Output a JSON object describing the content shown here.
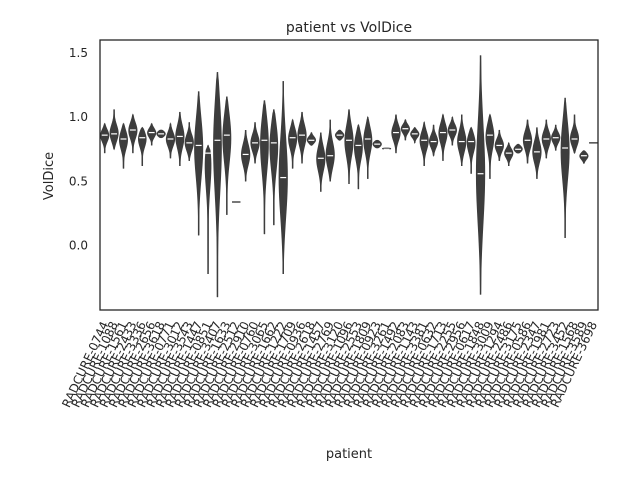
{
  "chart_data": {
    "type": "violin",
    "title": "patient vs VolDice",
    "xlabel": "patient",
    "ylabel": "VolDice",
    "ylim": [
      -0.5,
      1.6
    ],
    "yticks": [
      0.0,
      0.5,
      1.0,
      1.5
    ],
    "grid": false,
    "legend": "none",
    "violin_color": "#3d3d3d",
    "median_color": "#ffffff",
    "categories": [
      "RADCURE-0744",
      "RADCURE-1088",
      "RADCURE-1561",
      "RADCURE-2433",
      "RADCURE-3336",
      "RADCURE-2656",
      "RADCURE-3618",
      "RADCURE-0771",
      "RADCURE-3012",
      "RADCURE-3543",
      "RADCURE-1447",
      "RADCURE-0851",
      "RADCURE-3407",
      "RADCURE-1633",
      "RADCURE-2512",
      "RADCURE-2910",
      "RADCURE-0760",
      "RADCURE-3065",
      "RADCURE-1662",
      "RADCURE-1222",
      "RADCURE-1709",
      "RADCURE-0936",
      "RADCURE-2618",
      "RADCURE-1457",
      "RADCURE-2769",
      "RADCURE-3120",
      "RADCURE-1096",
      "RADCURE-2553",
      "RADCURE-1809",
      "RADCURE-0923",
      "RADCURE-3261",
      "RADCURE-1492",
      "RADCURE-2083",
      "RADCURE-1143",
      "RADCURE-3381",
      "RADCURE-0632",
      "RADCURE-1713",
      "RADCURE-2255",
      "RADCURE-2956",
      "RADCURE-0617",
      "RADCURE-1848",
      "RADCURE-3009",
      "RADCURE-1294",
      "RADCURE-2486",
      "RADCURE-3175",
      "RADCURE-0586",
      "RADCURE-2347",
      "RADCURE-1981",
      "RADCURE-2723",
      "RADCURE-3452",
      "RADCURE-1568",
      "RADCURE-3589",
      "RADCURE-3698"
    ],
    "series": [
      {
        "values_summary": [
          {
            "min": 0.72,
            "max": 0.95,
            "median": 0.86
          },
          {
            "min": 0.75,
            "max": 1.06,
            "median": 0.87
          },
          {
            "min": 0.6,
            "max": 0.95,
            "median": 0.83
          },
          {
            "min": 0.72,
            "max": 1.02,
            "median": 0.9
          },
          {
            "min": 0.62,
            "max": 0.92,
            "median": 0.84
          },
          {
            "min": 0.78,
            "max": 0.95,
            "median": 0.88
          },
          {
            "min": 0.84,
            "max": 0.9,
            "median": 0.87
          },
          {
            "min": 0.68,
            "max": 0.95,
            "median": 0.83
          },
          {
            "min": 0.62,
            "max": 1.04,
            "median": 0.85
          },
          {
            "min": 0.66,
            "max": 0.96,
            "median": 0.8
          },
          {
            "min": 0.08,
            "max": 1.2,
            "median": 0.78
          },
          {
            "min": -0.22,
            "max": 0.78,
            "median": 0.72
          },
          {
            "min": -0.4,
            "max": 1.35,
            "median": 0.82
          },
          {
            "min": 0.24,
            "max": 1.16,
            "median": 0.86
          },
          {
            "min": 0.34,
            "max": 0.34,
            "median": 0.34
          },
          {
            "min": 0.5,
            "max": 0.9,
            "median": 0.71
          },
          {
            "min": 0.64,
            "max": 0.96,
            "median": 0.8
          },
          {
            "min": 0.09,
            "max": 1.13,
            "median": 0.82
          },
          {
            "min": 0.16,
            "max": 1.06,
            "median": 0.8
          },
          {
            "min": -0.22,
            "max": 1.28,
            "median": 0.53
          },
          {
            "min": 0.6,
            "max": 0.98,
            "median": 0.84
          },
          {
            "min": 0.64,
            "max": 1.04,
            "median": 0.86
          },
          {
            "min": 0.78,
            "max": 0.88,
            "median": 0.82
          },
          {
            "min": 0.42,
            "max": 0.88,
            "median": 0.68
          },
          {
            "min": 0.5,
            "max": 0.98,
            "median": 0.7
          },
          {
            "min": 0.82,
            "max": 0.9,
            "median": 0.86
          },
          {
            "min": 0.48,
            "max": 1.06,
            "median": 0.82
          },
          {
            "min": 0.44,
            "max": 0.94,
            "median": 0.78
          },
          {
            "min": 0.52,
            "max": 1.0,
            "median": 0.83
          },
          {
            "min": 0.76,
            "max": 0.82,
            "median": 0.79
          },
          {
            "min": 0.75,
            "max": 0.76,
            "median": 0.75
          },
          {
            "min": 0.72,
            "max": 1.02,
            "median": 0.88
          },
          {
            "min": 0.82,
            "max": 0.98,
            "median": 0.91
          },
          {
            "min": 0.8,
            "max": 0.92,
            "median": 0.87
          },
          {
            "min": 0.62,
            "max": 0.96,
            "median": 0.82
          },
          {
            "min": 0.7,
            "max": 0.94,
            "median": 0.81
          },
          {
            "min": 0.66,
            "max": 1.02,
            "median": 0.88
          },
          {
            "min": 0.78,
            "max": 1.0,
            "median": 0.9
          },
          {
            "min": 0.62,
            "max": 1.02,
            "median": 0.81
          },
          {
            "min": 0.56,
            "max": 0.92,
            "median": 0.81
          },
          {
            "min": -0.38,
            "max": 1.48,
            "median": 0.56
          },
          {
            "min": 0.52,
            "max": 1.02,
            "median": 0.86
          },
          {
            "min": 0.66,
            "max": 0.9,
            "median": 0.78
          },
          {
            "min": 0.62,
            "max": 0.8,
            "median": 0.72
          },
          {
            "min": 0.72,
            "max": 0.79,
            "median": 0.75
          },
          {
            "min": 0.64,
            "max": 0.98,
            "median": 0.82
          },
          {
            "min": 0.52,
            "max": 0.92,
            "median": 0.73
          },
          {
            "min": 0.68,
            "max": 0.98,
            "median": 0.83
          },
          {
            "min": 0.74,
            "max": 0.94,
            "median": 0.84
          },
          {
            "min": 0.06,
            "max": 1.15,
            "median": 0.76
          },
          {
            "min": 0.72,
            "max": 1.02,
            "median": 0.83
          },
          {
            "min": 0.64,
            "max": 0.74,
            "median": 0.7
          },
          {
            "min": 0.8,
            "max": 0.8,
            "median": 0.8
          }
        ]
      }
    ]
  }
}
